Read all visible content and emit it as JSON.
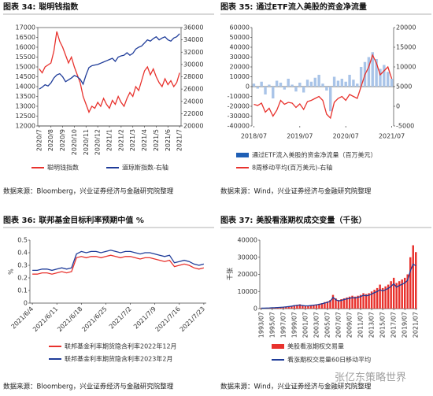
{
  "chart_data": [
    {
      "type": "line",
      "figure_label": "图表 34:",
      "title": "聪明钱指数",
      "categories": [
        "2020/7",
        null,
        null,
        null,
        "2020/8",
        null,
        null,
        null,
        "2020/9",
        null,
        null,
        null,
        "2020/10",
        null,
        null,
        null,
        "2020/11",
        null,
        null,
        null,
        "2020/12",
        null,
        null,
        null,
        "2021/1",
        null,
        null,
        null,
        "2021/2",
        null,
        null,
        null,
        "2021/3",
        null,
        null,
        null,
        "2021/4",
        null,
        null,
        null,
        "2021/5",
        null,
        null,
        null,
        "2021/6",
        null,
        null,
        null,
        "2021/7"
      ],
      "series": [
        {
          "name": "聪明钱指数",
          "type": "line",
          "color": "#e8322d",
          "values": [
            14900,
            14700,
            15000,
            15100,
            15200,
            15800,
            16800,
            16300,
            16000,
            15600,
            15200,
            15500,
            15000,
            14600,
            14200,
            13500,
            13100,
            12700,
            13000,
            12900,
            13200,
            13000,
            13400,
            13100,
            12900,
            13300,
            13100,
            13500,
            13200,
            13000,
            13400,
            13700,
            13500,
            14000,
            13800,
            14300,
            14800,
            15000,
            14600,
            14900,
            14500,
            14200,
            14000,
            14400,
            14100,
            14300,
            14000,
            14200,
            14700
          ]
        },
        {
          "name": "道琼斯指数-右轴",
          "type": "line",
          "axis": "y2",
          "color": "#1f3c99",
          "values": [
            26000,
            26300,
            26700,
            26500,
            27000,
            27800,
            28300,
            28500,
            28000,
            27200,
            27500,
            27800,
            28200,
            28000,
            27600,
            26800,
            28300,
            29500,
            29800,
            29900,
            30000,
            30200,
            30400,
            30600,
            30800,
            31000,
            30500,
            31200,
            31400,
            31500,
            31900,
            31500,
            31800,
            32500,
            32800,
            33000,
            33500,
            34000,
            33800,
            34200,
            34500,
            34000,
            34300,
            34500,
            34000,
            33800,
            34300,
            34500,
            35000
          ]
        }
      ],
      "ylim": [
        12000,
        17000
      ],
      "yticks": [
        12000,
        12500,
        13000,
        13500,
        14000,
        14500,
        15000,
        15500,
        16000,
        16500,
        17000
      ],
      "y2lim": [
        20000,
        36000
      ],
      "y2ticks": [
        20000,
        22000,
        24000,
        26000,
        28000,
        30000,
        32000,
        34000,
        36000
      ],
      "source": "数据来源：Bloomberg，兴业证券经济与金融研究院整理"
    },
    {
      "type": "combo",
      "figure_label": "图表 35:",
      "title": "通过ETF流入美股的资金净流量",
      "categories": [
        "2018/07",
        null,
        null,
        null,
        null,
        null,
        null,
        null,
        null,
        null,
        null,
        null,
        "2019/07",
        null,
        null,
        null,
        null,
        null,
        null,
        null,
        null,
        null,
        null,
        null,
        "2020/07",
        null,
        null,
        null,
        null,
        null,
        null,
        null,
        null,
        null,
        null,
        null,
        "2021/07"
      ],
      "series": [
        {
          "name": "通过ETF流入美股的资金净流量（百万美元）",
          "type": "bar",
          "color": "#a9c4e8",
          "values": [
            3000,
            -2000,
            5000,
            -8000,
            2000,
            -12000,
            6000,
            4000,
            -3000,
            8000,
            2000,
            -5000,
            4000,
            -6000,
            7000,
            5000,
            9000,
            12000,
            3000,
            -4000,
            -25000,
            10000,
            6000,
            8000,
            5000,
            12000,
            7000,
            3000,
            20000,
            25000,
            30000,
            35000,
            28000,
            18000,
            22000,
            15000,
            8000
          ]
        },
        {
          "name": "8周移动平均(百万美元)-右轴",
          "type": "line",
          "axis": "y2",
          "color": "#e8322d",
          "values": [
            500,
            200,
            800,
            -1500,
            -500,
            -2500,
            -1000,
            1500,
            500,
            1000,
            800,
            -300,
            600,
            -800,
            1200,
            1500,
            2000,
            2500,
            1500,
            -2000,
            -3000,
            1000,
            2000,
            2500,
            1500,
            3000,
            2500,
            2000,
            5000,
            8000,
            10000,
            13000,
            11000,
            8000,
            9000,
            10000,
            7000
          ]
        }
      ],
      "ylim": [
        -40000,
        60000
      ],
      "yticks": [
        -40000,
        -30000,
        -20000,
        -10000,
        0,
        10000,
        20000,
        30000,
        40000,
        50000,
        60000
      ],
      "y2lim": [
        -5000,
        20000
      ],
      "y2ticks": [
        -5000,
        0,
        5000,
        10000,
        15000,
        20000
      ],
      "source": "数据来源：Wind，兴业证券经济与金融研究院整理"
    },
    {
      "type": "line",
      "figure_label": "图表 36:",
      "title": "联邦基金目标利率预期中值 %",
      "ylabel": "%",
      "categories": [
        "2021/6/4",
        null,
        null,
        null,
        null,
        "2021/6/11",
        null,
        null,
        null,
        null,
        "2021/6/18",
        null,
        null,
        null,
        null,
        "2021/6/25",
        null,
        null,
        null,
        null,
        "2021/7/2",
        null,
        null,
        null,
        null,
        "2021/7/9",
        null,
        null,
        null,
        null,
        "2021/7/16",
        null,
        null,
        null,
        null,
        "2021/7/23"
      ],
      "series": [
        {
          "name": "联邦基金利率期货隐含利率2022年12月",
          "type": "line",
          "color": "#e8322d",
          "values": [
            0.23,
            0.23,
            0.24,
            0.24,
            0.23,
            0.24,
            0.25,
            0.24,
            0.25,
            0.36,
            0.37,
            0.36,
            0.37,
            0.37,
            0.36,
            0.37,
            0.38,
            0.37,
            0.36,
            0.37,
            0.37,
            0.36,
            0.35,
            0.36,
            0.36,
            0.35,
            0.34,
            0.33,
            0.34,
            0.29,
            0.3,
            0.31,
            0.3,
            0.28,
            0.27,
            0.28
          ]
        },
        {
          "name": "联邦基金利率期货隐含利率2023年2月",
          "type": "line",
          "color": "#1f3c99",
          "values": [
            0.26,
            0.26,
            0.27,
            0.27,
            0.26,
            0.27,
            0.28,
            0.27,
            0.28,
            0.39,
            0.41,
            0.4,
            0.41,
            0.41,
            0.4,
            0.41,
            0.42,
            0.41,
            0.4,
            0.41,
            0.41,
            0.4,
            0.39,
            0.4,
            0.4,
            0.39,
            0.38,
            0.37,
            0.38,
            0.32,
            0.33,
            0.34,
            0.33,
            0.31,
            0.3,
            0.31
          ]
        }
      ],
      "ylim": [
        0,
        0.5
      ],
      "yticks": [
        0,
        0.1,
        0.2,
        0.3,
        0.4,
        0.5
      ],
      "source": "数据来源：Bloomberg，兴业证券经济与金融研究院整理"
    },
    {
      "type": "combo",
      "figure_label": "图表 37:",
      "title": "美股看涨期权成交变量（千张）",
      "ylabel": "千张",
      "categories": [
        "1993/07",
        null,
        null,
        null,
        "1995/07",
        null,
        null,
        null,
        "1997/07",
        null,
        null,
        null,
        "1999/07",
        null,
        null,
        null,
        "2001/07",
        null,
        null,
        null,
        "2003/07",
        null,
        null,
        null,
        "2005/07",
        null,
        null,
        null,
        "2007/07",
        null,
        null,
        null,
        "2009/07",
        null,
        null,
        null,
        "2011/07",
        null,
        null,
        null,
        "2013/07",
        null,
        null,
        null,
        "2015/07",
        null,
        null,
        null,
        "2017/07",
        null,
        null,
        null,
        "2019/07",
        null,
        null,
        null,
        "2021/07"
      ],
      "series": [
        {
          "name": "美股看涨期权交易量",
          "type": "bar",
          "color": "#e8322d",
          "values": [
            300,
            400,
            400,
            500,
            600,
            700,
            800,
            900,
            1000,
            1200,
            1400,
            1600,
            2000,
            2200,
            2500,
            2000,
            1800,
            1800,
            2000,
            2200,
            2500,
            2800,
            3200,
            3800,
            4200,
            5000,
            8000,
            6000,
            5000,
            5500,
            6000,
            6500,
            7000,
            7500,
            7000,
            7500,
            8000,
            9000,
            8500,
            9000,
            10000,
            11000,
            12000,
            14000,
            12000,
            13000,
            14000,
            16000,
            18000,
            15000,
            16000,
            17000,
            18000,
            20000,
            30000,
            37000,
            33000
          ]
        },
        {
          "name": "看涨期权交易量60日移动平均",
          "type": "line",
          "color": "#1f3c99",
          "values": [
            250,
            300,
            350,
            400,
            500,
            550,
            650,
            750,
            850,
            1000,
            1200,
            1400,
            1700,
            1900,
            2100,
            1800,
            1600,
            1600,
            1800,
            2000,
            2200,
            2500,
            2800,
            3300,
            3700,
            4300,
            6500,
            5200,
            4500,
            4800,
            5300,
            5700,
            6000,
            6400,
            6200,
            6600,
            7000,
            7800,
            7500,
            7800,
            8500,
            9300,
            10000,
            11000,
            10300,
            11000,
            11800,
            13000,
            14500,
            12500,
            13500,
            14200,
            15000,
            16500,
            22000,
            26000,
            25000
          ]
        }
      ],
      "ylim": [
        0,
        40000
      ],
      "yticks": [
        0,
        10000,
        20000,
        30000,
        40000
      ],
      "source": "数据来源：Wind，兴业证券经济与金融研究院整理"
    }
  ],
  "watermark": "张亿东策略世界"
}
